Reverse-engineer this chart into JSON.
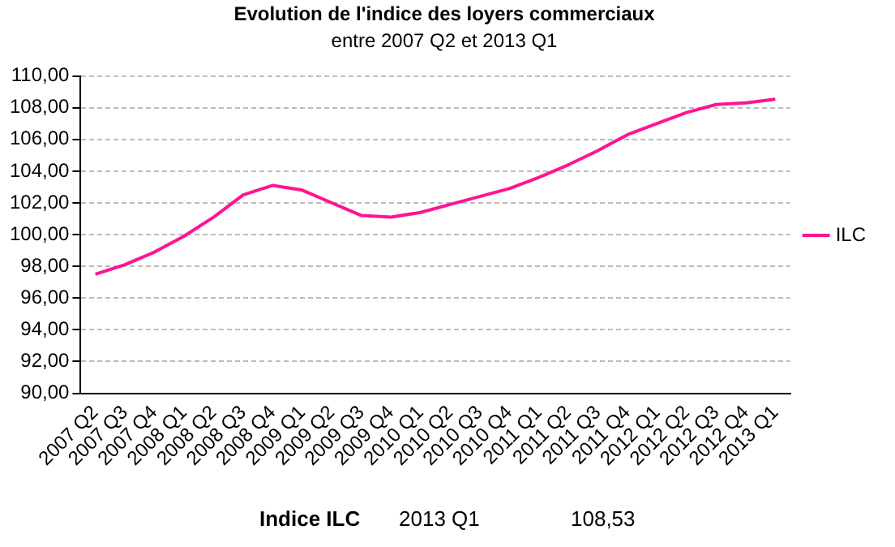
{
  "chart_data": {
    "type": "line",
    "title": "Evolution de l'indice des loyers commerciaux",
    "subtitle": "entre 2007 Q2 et 2013 Q1",
    "categories": [
      "2007 Q2",
      "2007 Q3",
      "2007 Q4",
      "2008 Q1",
      "2008 Q2",
      "2008 Q3",
      "2008 Q4",
      "2009 Q1",
      "2009 Q2",
      "2009 Q3",
      "2009 Q4",
      "2010 Q1",
      "2010 Q2",
      "2010 Q3",
      "2010 Q4",
      "2011 Q1",
      "2011 Q2",
      "2011 Q3",
      "2011 Q4",
      "2012 Q1",
      "2012 Q2",
      "2012 Q3",
      "2012 Q4",
      "2013 Q1"
    ],
    "series": [
      {
        "name": "ILC",
        "color": "#ff1493",
        "values": [
          97.5,
          98.1,
          98.9,
          99.9,
          101.1,
          102.5,
          103.1,
          102.8,
          102.0,
          101.2,
          101.1,
          101.4,
          101.9,
          102.4,
          102.9,
          103.6,
          104.4,
          105.3,
          106.3,
          107.0,
          107.7,
          108.2,
          108.3,
          108.53
        ]
      }
    ],
    "ylim": [
      90,
      110
    ],
    "yticks": [
      {
        "value": 90,
        "label": "90,00"
      },
      {
        "value": 92,
        "label": "92,00"
      },
      {
        "value": 94,
        "label": "94,00"
      },
      {
        "value": 96,
        "label": "96,00"
      },
      {
        "value": 98,
        "label": "98,00"
      },
      {
        "value": 100,
        "label": "100,00"
      },
      {
        "value": 102,
        "label": "102,00"
      },
      {
        "value": 104,
        "label": "104,00"
      },
      {
        "value": 106,
        "label": "106,00"
      },
      {
        "value": 108,
        "label": "108,00"
      },
      {
        "value": 110,
        "label": "110,00"
      }
    ],
    "grid": "y",
    "legend": "right",
    "marker": "none",
    "line_style": "solid",
    "annotations": [
      "Indice ILC",
      "2013 Q1",
      "108,53"
    ]
  }
}
